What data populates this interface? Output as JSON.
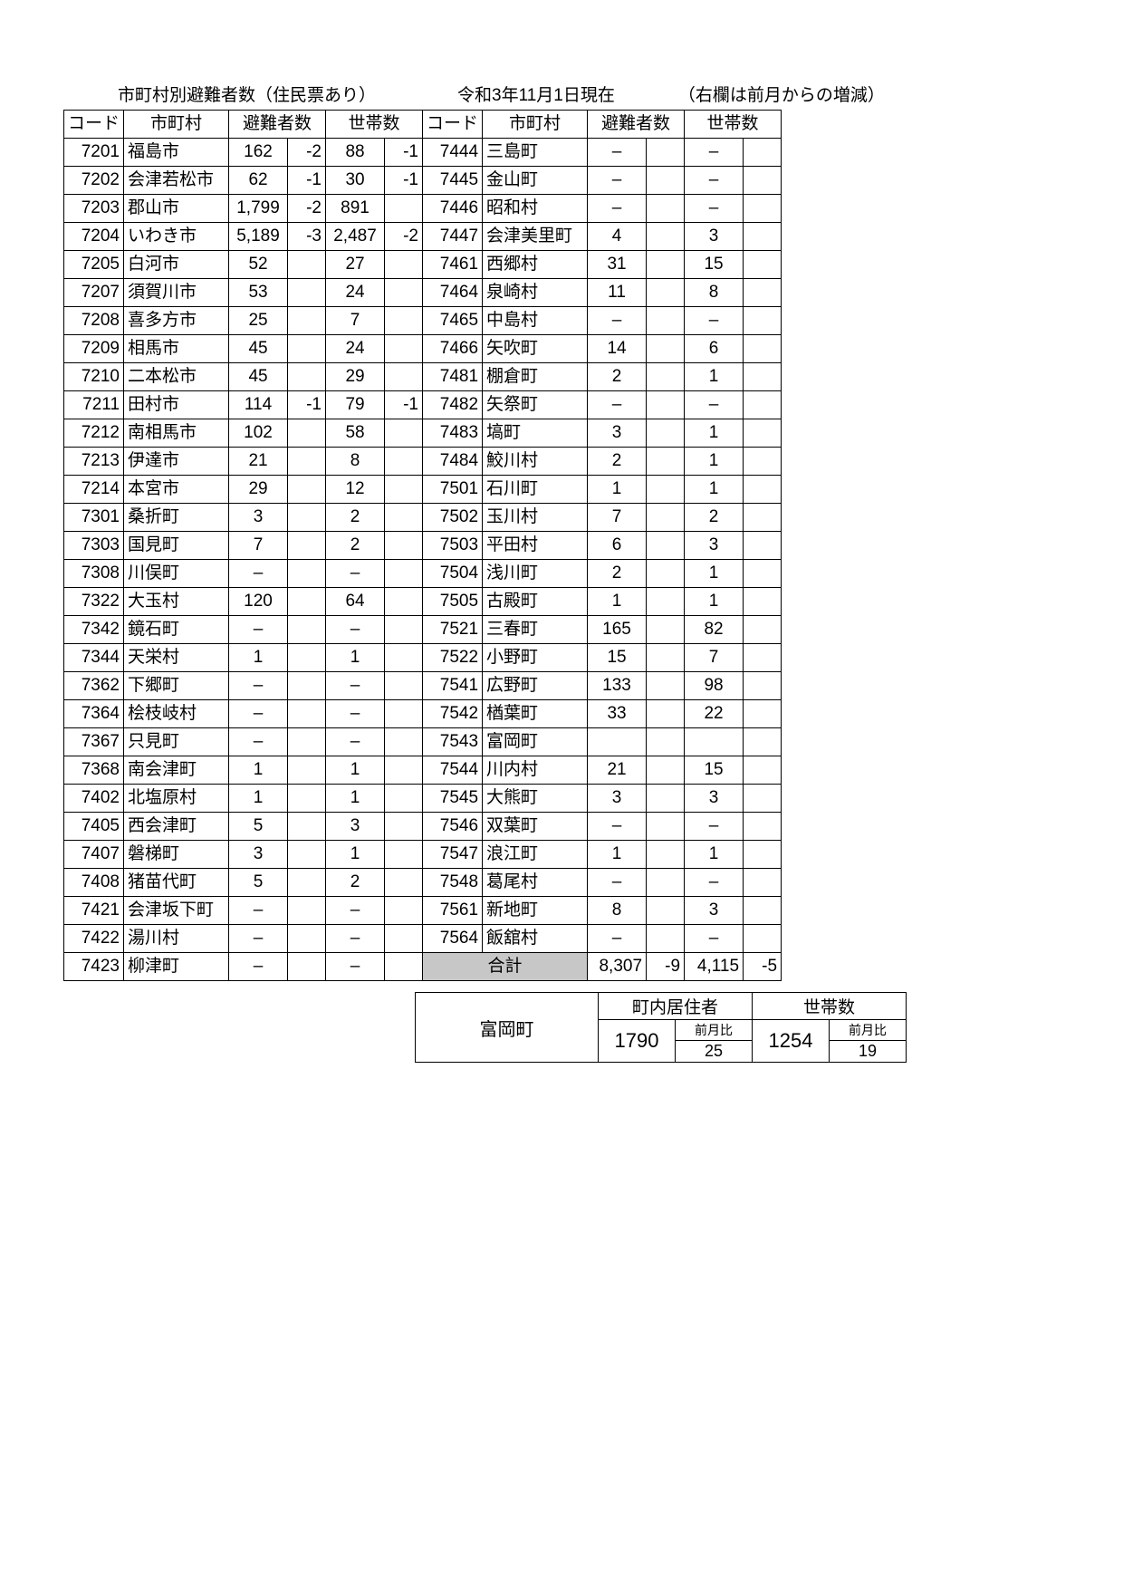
{
  "header": {
    "title": "市町村別避難者数（住民票あり）",
    "date": "令和3年11月1日現在",
    "note": "（右欄は前月からの増減）"
  },
  "columns": {
    "code": "コード",
    "name": "市町村",
    "evac": "避難者数",
    "hh": "世帯数"
  },
  "left": [
    {
      "code": "7201",
      "name": "福島市",
      "e": "162",
      "ed": "-2",
      "h": "88",
      "hd": "-1"
    },
    {
      "code": "7202",
      "name": "会津若松市",
      "e": "62",
      "ed": "-1",
      "h": "30",
      "hd": "-1"
    },
    {
      "code": "7203",
      "name": "郡山市",
      "e": "1,799",
      "ed": "-2",
      "h": "891",
      "hd": ""
    },
    {
      "code": "7204",
      "name": "いわき市",
      "e": "5,189",
      "ed": "-3",
      "h": "2,487",
      "hd": "-2"
    },
    {
      "code": "7205",
      "name": "白河市",
      "e": "52",
      "ed": "",
      "h": "27",
      "hd": ""
    },
    {
      "code": "7207",
      "name": "須賀川市",
      "e": "53",
      "ed": "",
      "h": "24",
      "hd": ""
    },
    {
      "code": "7208",
      "name": "喜多方市",
      "e": "25",
      "ed": "",
      "h": "7",
      "hd": ""
    },
    {
      "code": "7209",
      "name": "相馬市",
      "e": "45",
      "ed": "",
      "h": "24",
      "hd": ""
    },
    {
      "code": "7210",
      "name": "二本松市",
      "e": "45",
      "ed": "",
      "h": "29",
      "hd": ""
    },
    {
      "code": "7211",
      "name": "田村市",
      "e": "114",
      "ed": "-1",
      "h": "79",
      "hd": "-1"
    },
    {
      "code": "7212",
      "name": "南相馬市",
      "e": "102",
      "ed": "",
      "h": "58",
      "hd": ""
    },
    {
      "code": "7213",
      "name": "伊達市",
      "e": "21",
      "ed": "",
      "h": "8",
      "hd": ""
    },
    {
      "code": "7214",
      "name": "本宮市",
      "e": "29",
      "ed": "",
      "h": "12",
      "hd": ""
    },
    {
      "code": "7301",
      "name": "桑折町",
      "e": "3",
      "ed": "",
      "h": "2",
      "hd": ""
    },
    {
      "code": "7303",
      "name": "国見町",
      "e": "7",
      "ed": "",
      "h": "2",
      "hd": ""
    },
    {
      "code": "7308",
      "name": "川俣町",
      "e": "–",
      "ed": "",
      "h": "–",
      "hd": ""
    },
    {
      "code": "7322",
      "name": "大玉村",
      "e": "120",
      "ed": "",
      "h": "64",
      "hd": ""
    },
    {
      "code": "7342",
      "name": "鏡石町",
      "e": "–",
      "ed": "",
      "h": "–",
      "hd": ""
    },
    {
      "code": "7344",
      "name": "天栄村",
      "e": "1",
      "ed": "",
      "h": "1",
      "hd": ""
    },
    {
      "code": "7362",
      "name": "下郷町",
      "e": "–",
      "ed": "",
      "h": "–",
      "hd": ""
    },
    {
      "code": "7364",
      "name": "桧枝岐村",
      "e": "–",
      "ed": "",
      "h": "–",
      "hd": ""
    },
    {
      "code": "7367",
      "name": "只見町",
      "e": "–",
      "ed": "",
      "h": "–",
      "hd": ""
    },
    {
      "code": "7368",
      "name": "南会津町",
      "e": "1",
      "ed": "",
      "h": "1",
      "hd": ""
    },
    {
      "code": "7402",
      "name": "北塩原村",
      "e": "1",
      "ed": "",
      "h": "1",
      "hd": ""
    },
    {
      "code": "7405",
      "name": "西会津町",
      "e": "5",
      "ed": "",
      "h": "3",
      "hd": ""
    },
    {
      "code": "7407",
      "name": "磐梯町",
      "e": "3",
      "ed": "",
      "h": "1",
      "hd": ""
    },
    {
      "code": "7408",
      "name": "猪苗代町",
      "e": "5",
      "ed": "",
      "h": "2",
      "hd": ""
    },
    {
      "code": "7421",
      "name": "会津坂下町",
      "e": "–",
      "ed": "",
      "h": "–",
      "hd": ""
    },
    {
      "code": "7422",
      "name": "湯川村",
      "e": "–",
      "ed": "",
      "h": "–",
      "hd": ""
    },
    {
      "code": "7423",
      "name": "柳津町",
      "e": "–",
      "ed": "",
      "h": "–",
      "hd": ""
    }
  ],
  "right": [
    {
      "code": "7444",
      "name": "三島町",
      "e": "–",
      "ed": "",
      "h": "–",
      "hd": ""
    },
    {
      "code": "7445",
      "name": "金山町",
      "e": "–",
      "ed": "",
      "h": "–",
      "hd": ""
    },
    {
      "code": "7446",
      "name": "昭和村",
      "e": "–",
      "ed": "",
      "h": "–",
      "hd": ""
    },
    {
      "code": "7447",
      "name": "会津美里町",
      "e": "4",
      "ed": "",
      "h": "3",
      "hd": ""
    },
    {
      "code": "7461",
      "name": "西郷村",
      "e": "31",
      "ed": "",
      "h": "15",
      "hd": ""
    },
    {
      "code": "7464",
      "name": "泉崎村",
      "e": "11",
      "ed": "",
      "h": "8",
      "hd": ""
    },
    {
      "code": "7465",
      "name": "中島村",
      "e": "–",
      "ed": "",
      "h": "–",
      "hd": ""
    },
    {
      "code": "7466",
      "name": "矢吹町",
      "e": "14",
      "ed": "",
      "h": "6",
      "hd": ""
    },
    {
      "code": "7481",
      "name": "棚倉町",
      "e": "2",
      "ed": "",
      "h": "1",
      "hd": ""
    },
    {
      "code": "7482",
      "name": "矢祭町",
      "e": "–",
      "ed": "",
      "h": "–",
      "hd": ""
    },
    {
      "code": "7483",
      "name": "塙町",
      "e": "3",
      "ed": "",
      "h": "1",
      "hd": ""
    },
    {
      "code": "7484",
      "name": "鮫川村",
      "e": "2",
      "ed": "",
      "h": "1",
      "hd": ""
    },
    {
      "code": "7501",
      "name": "石川町",
      "e": "1",
      "ed": "",
      "h": "1",
      "hd": ""
    },
    {
      "code": "7502",
      "name": "玉川村",
      "e": "7",
      "ed": "",
      "h": "2",
      "hd": ""
    },
    {
      "code": "7503",
      "name": "平田村",
      "e": "6",
      "ed": "",
      "h": "3",
      "hd": ""
    },
    {
      "code": "7504",
      "name": "浅川町",
      "e": "2",
      "ed": "",
      "h": "1",
      "hd": ""
    },
    {
      "code": "7505",
      "name": "古殿町",
      "e": "1",
      "ed": "",
      "h": "1",
      "hd": ""
    },
    {
      "code": "7521",
      "name": "三春町",
      "e": "165",
      "ed": "",
      "h": "82",
      "hd": ""
    },
    {
      "code": "7522",
      "name": "小野町",
      "e": "15",
      "ed": "",
      "h": "7",
      "hd": ""
    },
    {
      "code": "7541",
      "name": "広野町",
      "e": "133",
      "ed": "",
      "h": "98",
      "hd": ""
    },
    {
      "code": "7542",
      "name": "楢葉町",
      "e": "33",
      "ed": "",
      "h": "22",
      "hd": ""
    },
    {
      "code": "7543",
      "name": "富岡町",
      "e": "",
      "ed": "",
      "h": "",
      "hd": ""
    },
    {
      "code": "7544",
      "name": "川内村",
      "e": "21",
      "ed": "",
      "h": "15",
      "hd": ""
    },
    {
      "code": "7545",
      "name": "大熊町",
      "e": "3",
      "ed": "",
      "h": "3",
      "hd": ""
    },
    {
      "code": "7546",
      "name": "双葉町",
      "e": "–",
      "ed": "",
      "h": "–",
      "hd": ""
    },
    {
      "code": "7547",
      "name": "浪江町",
      "e": "1",
      "ed": "",
      "h": "1",
      "hd": ""
    },
    {
      "code": "7548",
      "name": "葛尾村",
      "e": "–",
      "ed": "",
      "h": "–",
      "hd": ""
    },
    {
      "code": "7561",
      "name": "新地町",
      "e": "8",
      "ed": "",
      "h": "3",
      "hd": ""
    },
    {
      "code": "7564",
      "name": "飯舘村",
      "e": "–",
      "ed": "",
      "h": "–",
      "hd": ""
    }
  ],
  "total": {
    "label": "合計",
    "e": "8,307",
    "ed": "-9",
    "h": "4,115",
    "hd": "-5"
  },
  "sub": {
    "name": "富岡町",
    "residents_label": "町内居住者",
    "hh_label": "世帯数",
    "mom_label": "前月比",
    "residents": "1790",
    "residents_delta": "25",
    "hh": "1254",
    "hh_delta": "19"
  }
}
